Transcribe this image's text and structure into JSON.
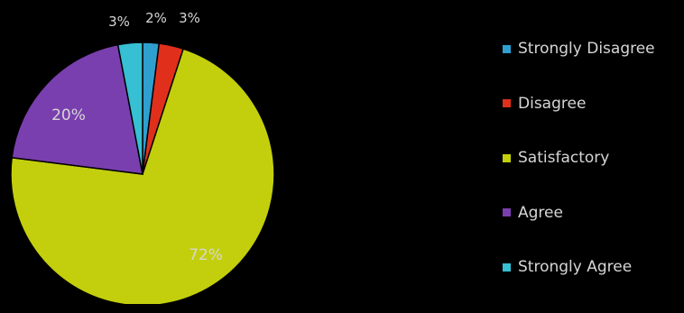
{
  "chart_data": {
    "type": "pie",
    "title": "",
    "series": [
      {
        "label": "Strongly Disagree",
        "value": 2,
        "color": "#2f9fd0"
      },
      {
        "label": "Disagree",
        "value": 3,
        "color": "#e0301c"
      },
      {
        "label": "Satisfactory",
        "value": 72,
        "color": "#c3cf0c"
      },
      {
        "label": "Agree",
        "value": 20,
        "color": "#7a3fae"
      },
      {
        "label": "Strongly Agree",
        "value": 3,
        "color": "#37bfd3"
      }
    ],
    "data_labels": [
      "2%",
      "3%",
      "72%",
      "20%",
      "3%"
    ],
    "legend_position": "right",
    "label_color": "#d6d6d6"
  }
}
